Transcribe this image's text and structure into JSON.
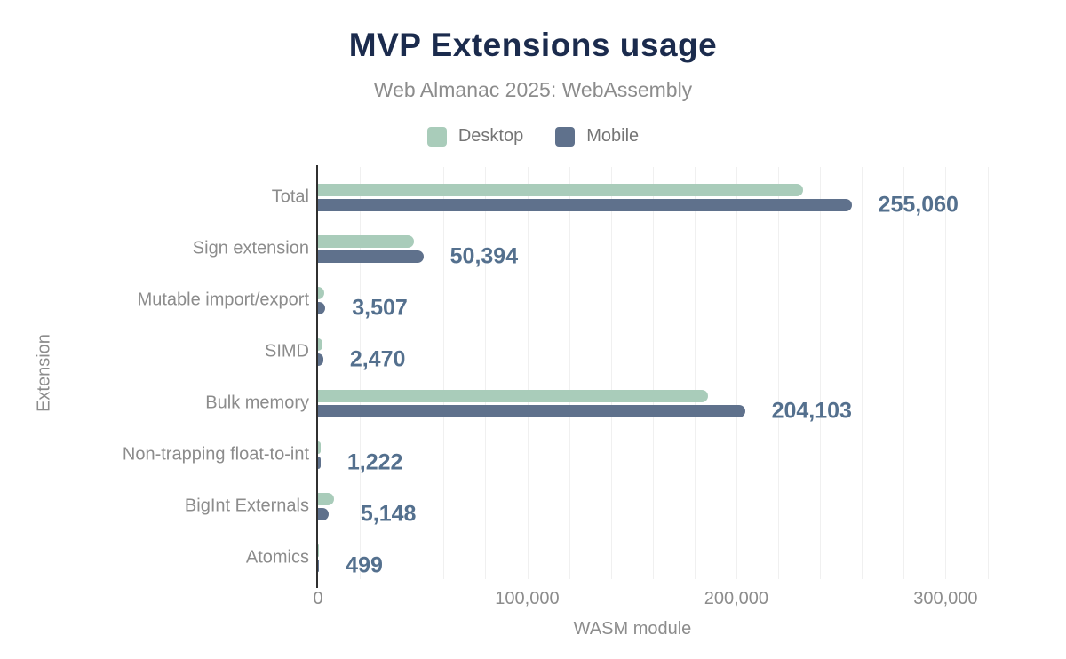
{
  "header": {
    "title": "MVP Extensions usage",
    "subtitle": "Web Almanac 2025: WebAssembly"
  },
  "legend": [
    {
      "label": "Desktop",
      "color": "#a9ccba"
    },
    {
      "label": "Mobile",
      "color": "#5f718c"
    }
  ],
  "colors": {
    "title": "#1b2b4d",
    "subtitle_gray": "#8c8c8c",
    "desktop_bar": "#a9ccba",
    "mobile_bar": "#5f718c",
    "value_label": "#54708e",
    "gridline": "#f0f0f0",
    "axis_line": "#303030",
    "background": "#ffffff"
  },
  "chart_data": {
    "type": "bar",
    "orientation": "horizontal",
    "title": "MVP Extensions usage",
    "subtitle": "Web Almanac 2025: WebAssembly",
    "xlabel": "WASM module",
    "ylabel": "Extension",
    "legend_position": "top",
    "grid": true,
    "xlim": [
      0,
      330000
    ],
    "minor_grid_step": 20000,
    "x_ticks": [
      {
        "value": 0,
        "label": "0"
      },
      {
        "value": 100000,
        "label": "100,000"
      },
      {
        "value": 200000,
        "label": "200,000"
      },
      {
        "value": 300000,
        "label": "300,000"
      }
    ],
    "categories": [
      "Total",
      "Sign extension",
      "Mutable import/export",
      "SIMD",
      "Bulk memory",
      "Non-trapping float-to-int",
      "BigInt Externals",
      "Atomics"
    ],
    "series": [
      {
        "name": "Desktop",
        "color": "#a9ccba",
        "values": [
          232000,
          45900,
          3000,
          2100,
          186500,
          1050,
          7600,
          420
        ]
      },
      {
        "name": "Mobile",
        "color": "#5f718c",
        "values": [
          255060,
          50394,
          3507,
          2470,
          204103,
          1222,
          5148,
          499
        ]
      }
    ],
    "value_labels": [
      "255,060",
      "50,394",
      "3,507",
      "2,470",
      "204,103",
      "1,222",
      "5,148",
      "499"
    ]
  }
}
